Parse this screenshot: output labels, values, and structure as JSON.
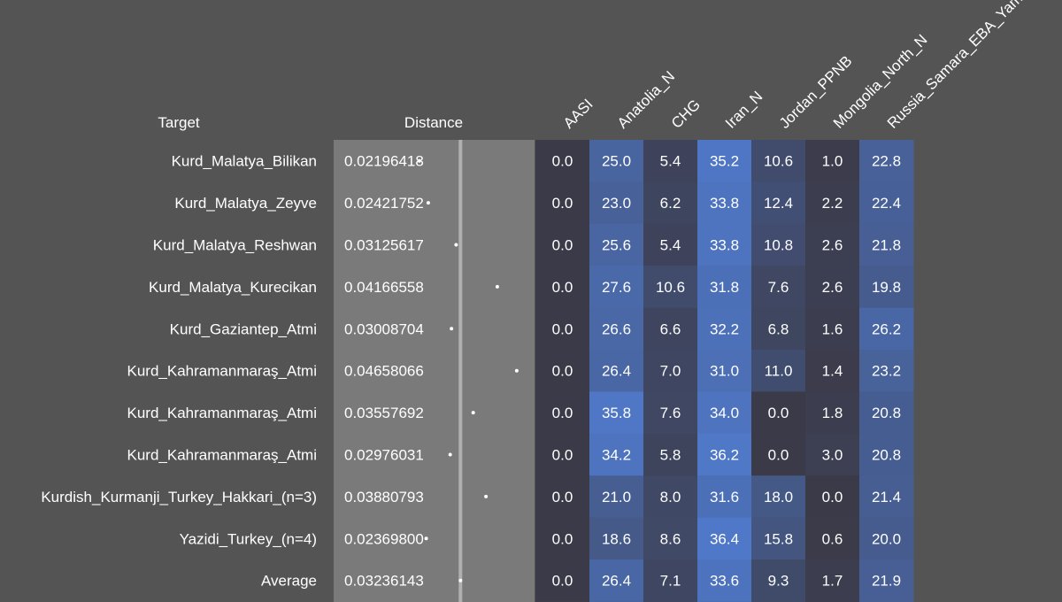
{
  "chart_data": {
    "type": "heatmap",
    "headers": {
      "target": "Target",
      "distance": "Distance"
    },
    "columns": [
      "AASI",
      "Anatolia_N",
      "CHG",
      "Iran_N",
      "Jordan_PPNB",
      "Mongolia_North_N",
      "Russia_Samara_EBA_Yamnaya"
    ],
    "rows": [
      {
        "target": "Kurd_Malatya_Bilikan",
        "distance": "0.02196418",
        "values": [
          0.0,
          25.0,
          5.4,
          35.2,
          10.6,
          1.0,
          22.8
        ]
      },
      {
        "target": "Kurd_Malatya_Zeyve",
        "distance": "0.02421752",
        "values": [
          0.0,
          23.0,
          6.2,
          33.8,
          12.4,
          2.2,
          22.4
        ]
      },
      {
        "target": "Kurd_Malatya_Reshwan",
        "distance": "0.03125617",
        "values": [
          0.0,
          25.6,
          5.4,
          33.8,
          10.8,
          2.6,
          21.8
        ]
      },
      {
        "target": "Kurd_Malatya_Kurecikan",
        "distance": "0.04166558",
        "values": [
          0.0,
          27.6,
          10.6,
          31.8,
          7.6,
          2.6,
          19.8
        ]
      },
      {
        "target": "Kurd_Gaziantep_Atmi",
        "distance": "0.03008704",
        "values": [
          0.0,
          26.6,
          6.6,
          32.2,
          6.8,
          1.6,
          26.2
        ]
      },
      {
        "target": "Kurd_Kahramanmaraş_Atmi",
        "distance": "0.04658066",
        "values": [
          0.0,
          26.4,
          7.0,
          31.0,
          11.0,
          1.4,
          23.2
        ]
      },
      {
        "target": "Kurd_Kahramanmaraş_Atmi",
        "distance": "0.03557692",
        "values": [
          0.0,
          35.8,
          7.6,
          34.0,
          0.0,
          1.8,
          20.8
        ]
      },
      {
        "target": "Kurd_Kahramanmaraş_Atmi",
        "distance": "0.02976031",
        "values": [
          0.0,
          34.2,
          5.8,
          36.2,
          0.0,
          3.0,
          20.8
        ]
      },
      {
        "target": "Kurdish_Kurmanji_Turkey_Hakkari_(n=3)",
        "distance": "0.03880793",
        "values": [
          0.0,
          21.0,
          8.0,
          31.6,
          18.0,
          0.0,
          21.4
        ]
      },
      {
        "target": "Yazidi_Turkey_(n=4)",
        "distance": "0.02369800",
        "values": [
          0.0,
          18.6,
          8.6,
          36.4,
          15.8,
          0.6,
          20.0
        ]
      },
      {
        "target": "Average",
        "distance": "0.03236143",
        "values": [
          0.0,
          26.4,
          7.1,
          33.6,
          9.3,
          1.7,
          21.9
        ]
      }
    ],
    "distance_reference": 0.03236143,
    "colors": {
      "page_background": "#545454",
      "distance_panel": "#7a7a7a",
      "reference_line": "#b0b0b0",
      "heat_low": "#3b3a48",
      "heat_high": "#4f78c8",
      "text": "#ffffff"
    }
  }
}
